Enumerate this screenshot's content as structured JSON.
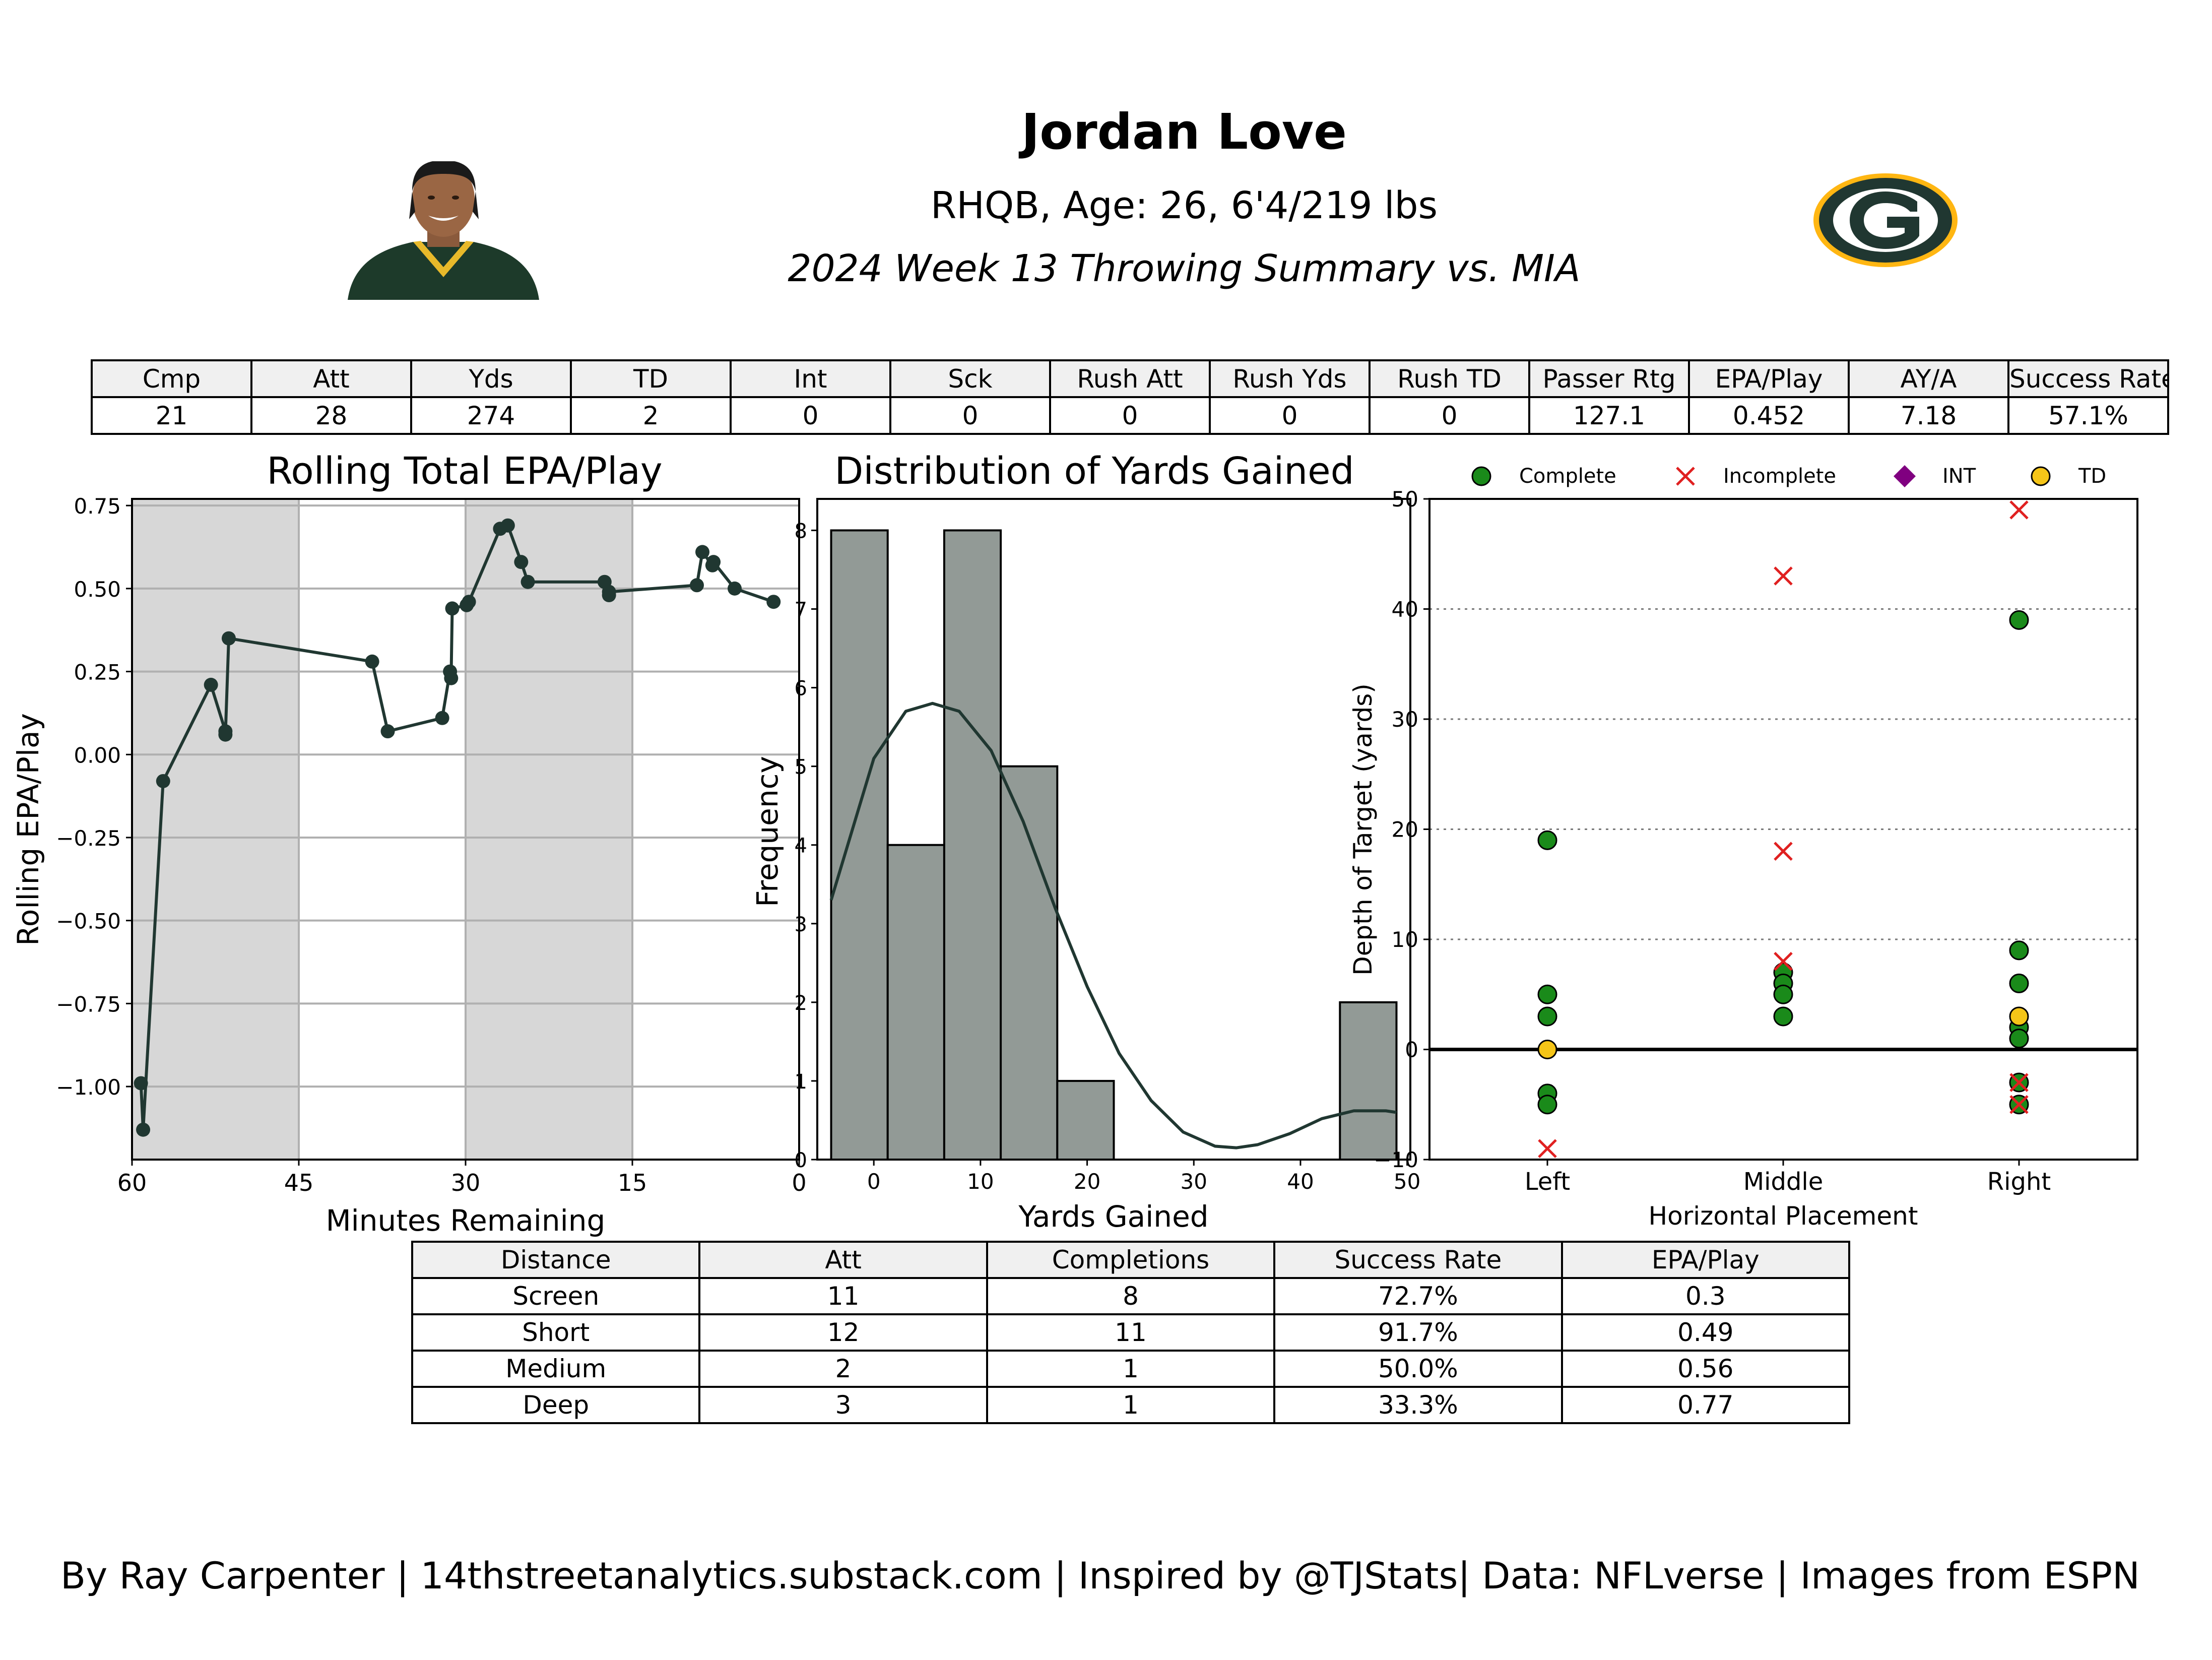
{
  "header": {
    "title": "Jordan Love",
    "subtitle": "RHQB, Age: 26, 6'4/219 lbs",
    "summary": "2024 Week 13 Throwing Summary vs. MIA"
  },
  "images": {
    "player_photo": "player-headshot",
    "team_logo": "green-bay-g-logo",
    "team_colors": {
      "green": "#203731",
      "gold": "#FFB612"
    }
  },
  "stat_table": {
    "headers": [
      "Cmp",
      "Att",
      "Yds",
      "TD",
      "Int",
      "Sck",
      "Rush Att",
      "Rush Yds",
      "Rush TD",
      "Passer Rtg",
      "EPA/Play",
      "AY/A",
      "Success Rate"
    ],
    "values": [
      "21",
      "28",
      "274",
      "2",
      "0",
      "0",
      "0",
      "0",
      "0",
      "127.1",
      "0.452",
      "7.18",
      "57.1%"
    ]
  },
  "distance_table": {
    "headers": [
      "Distance",
      "Att",
      "Completions",
      "Success Rate",
      "EPA/Play"
    ],
    "rows": [
      [
        "Screen",
        "11",
        "8",
        "72.7%",
        "0.3"
      ],
      [
        "Short",
        "12",
        "11",
        "91.7%",
        "0.49"
      ],
      [
        "Medium",
        "2",
        "1",
        "50.0%",
        "0.56"
      ],
      [
        "Deep",
        "3",
        "1",
        "33.3%",
        "0.77"
      ]
    ]
  },
  "footer": "By Ray Carpenter | 14thstreetanalytics.substack.com | Inspired by @TJStats| Data: NFLverse | Images from ESPN",
  "chart_data": [
    {
      "type": "line",
      "title": "Rolling Total EPA/Play",
      "xlabel": "Minutes Remaining",
      "ylabel": "Rolling EPA/Play",
      "xlim": [
        60,
        0
      ],
      "ylim": [
        -1.22,
        0.77
      ],
      "xticks": [
        "60",
        "45",
        "30",
        "15",
        "0"
      ],
      "yticks": [
        "0.75",
        "0.50",
        "0.25",
        "0.00",
        "−0.25",
        "−0.50",
        "−0.75",
        "−1.00"
      ],
      "shaded_quarters": [
        [
          60,
          45
        ],
        [
          30,
          15
        ]
      ],
      "grid": true,
      "color": "#203731",
      "x": [
        59.2,
        59.0,
        57.2,
        52.9,
        51.6,
        51.6,
        51.3,
        38.4,
        37.0,
        32.1,
        31.4,
        31.3,
        31.2,
        29.9,
        29.7,
        26.9,
        26.2,
        25.0,
        24.4,
        17.5,
        17.1,
        17.1,
        9.2,
        8.7,
        7.8,
        7.7,
        5.8,
        2.3
      ],
      "y": [
        -0.99,
        -1.13,
        -0.08,
        0.21,
        0.07,
        0.06,
        0.35,
        0.28,
        0.07,
        0.11,
        0.25,
        0.23,
        0.44,
        0.45,
        0.46,
        0.68,
        0.69,
        0.58,
        0.52,
        0.52,
        0.48,
        0.49,
        0.51,
        0.61,
        0.57,
        0.58,
        0.5,
        0.46
      ]
    },
    {
      "type": "bar",
      "title": "Distribution of Yards Gained",
      "xlabel": "Yards Gained",
      "ylabel": "Frequency",
      "bin_edges": [
        -4,
        1.3,
        6.6,
        11.9,
        17.2,
        22.5,
        27.8,
        33.1,
        38.4,
        43.7,
        49
      ],
      "values": [
        8,
        4,
        8,
        5,
        1,
        0,
        0,
        0,
        0,
        2
      ],
      "kde": {
        "x": [
          -4,
          0,
          3,
          5.5,
          8,
          11,
          14,
          17,
          20,
          23,
          26,
          29,
          32,
          34,
          36,
          39,
          42,
          45,
          48,
          49
        ],
        "y": [
          3.3,
          5.1,
          5.7,
          5.8,
          5.7,
          5.2,
          4.3,
          3.2,
          2.2,
          1.35,
          0.75,
          0.35,
          0.17,
          0.15,
          0.19,
          0.33,
          0.52,
          0.62,
          0.62,
          0.6
        ]
      },
      "xlim": [
        -5.3,
        50.3
      ],
      "ylim": [
        0,
        8.4
      ],
      "xticks": [
        "0",
        "10",
        "20",
        "30",
        "40",
        "50"
      ],
      "yticks": [
        "0",
        "1",
        "2",
        "3",
        "4",
        "5",
        "6",
        "7",
        "8"
      ],
      "bar_color": "#929a96",
      "line_color": "#203731"
    },
    {
      "type": "scatter",
      "xlabel": "Horizontal Placement",
      "ylabel": "Depth of Target (yards)",
      "categories": [
        "Left",
        "Middle",
        "Right"
      ],
      "ylim": [
        -10,
        50
      ],
      "yticks": [
        "−10",
        "0",
        "10",
        "20",
        "30",
        "40",
        "50"
      ],
      "legend": {
        "placement": "top",
        "labels": [
          "Complete",
          "Incomplete",
          "INT",
          "TD"
        ]
      },
      "colors": {
        "complete": "#1a8a1a",
        "incomplete": "#e02020",
        "int": "#800080",
        "td": "#f5c518"
      },
      "series": [
        {
          "name": "Complete",
          "points": [
            [
              "Left",
              19
            ],
            [
              "Left",
              5
            ],
            [
              "Left",
              3
            ],
            [
              "Left",
              -4
            ],
            [
              "Left",
              -5
            ],
            [
              "Middle",
              7
            ],
            [
              "Middle",
              6
            ],
            [
              "Middle",
              5
            ],
            [
              "Middle",
              3
            ],
            [
              "Right",
              39
            ],
            [
              "Right",
              9
            ],
            [
              "Right",
              6
            ],
            [
              "Right",
              2
            ],
            [
              "Right",
              1
            ],
            [
              "Right",
              -3
            ],
            [
              "Right",
              -5
            ]
          ]
        },
        {
          "name": "Incomplete",
          "points": [
            [
              "Left",
              -9
            ],
            [
              "Middle",
              43
            ],
            [
              "Middle",
              18
            ],
            [
              "Middle",
              8
            ],
            [
              "Right",
              49
            ],
            [
              "Right",
              -3
            ],
            [
              "Right",
              -5
            ]
          ]
        },
        {
          "name": "INT",
          "points": []
        },
        {
          "name": "TD",
          "points": [
            [
              "Left",
              0
            ],
            [
              "Right",
              3
            ]
          ]
        }
      ]
    }
  ]
}
